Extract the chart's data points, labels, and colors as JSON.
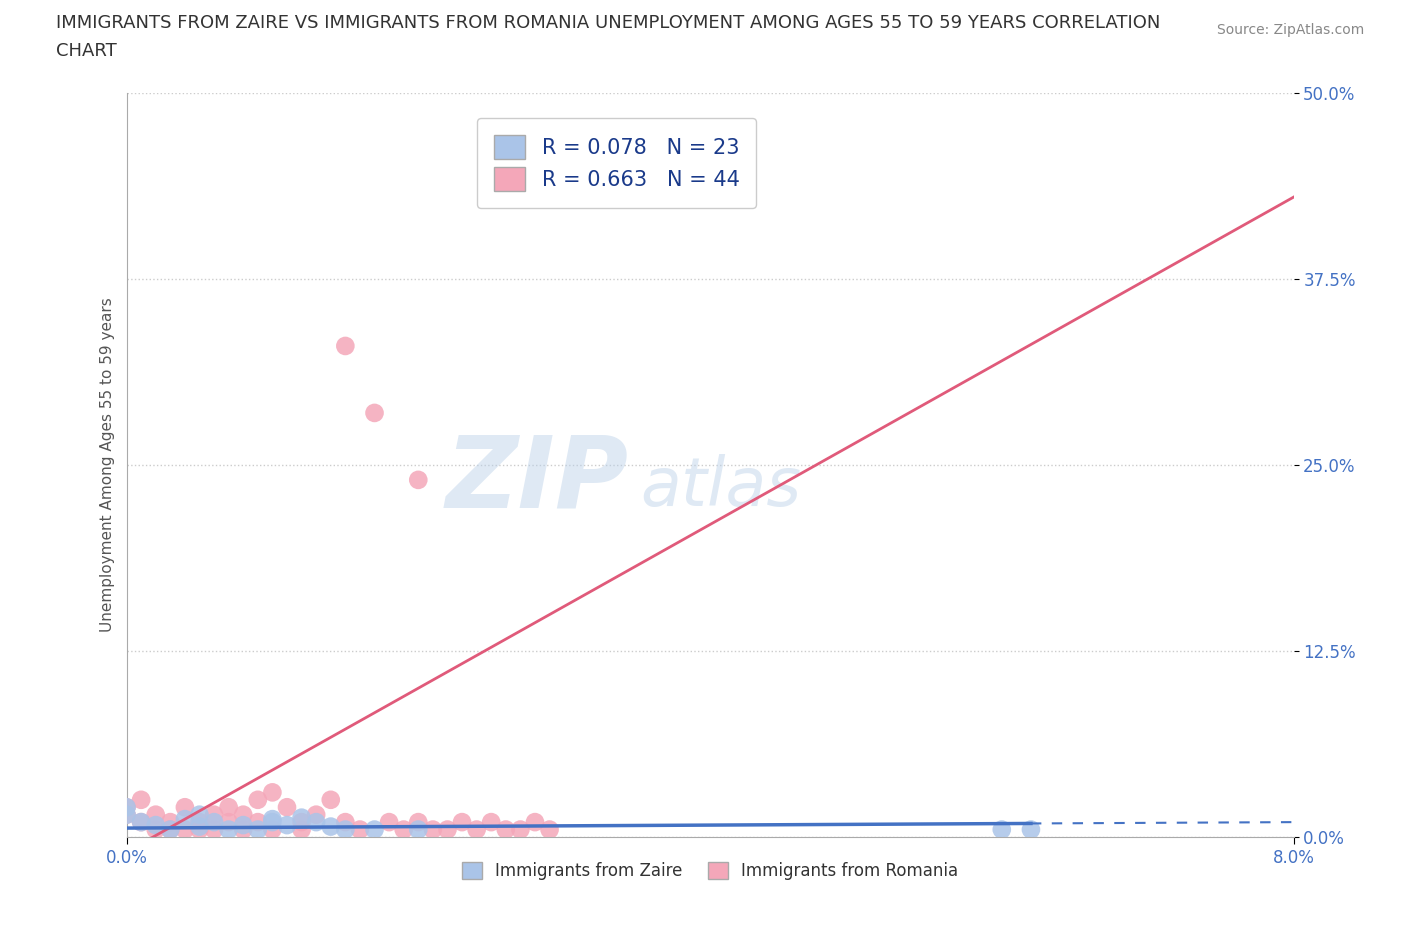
{
  "title_line1": "IMMIGRANTS FROM ZAIRE VS IMMIGRANTS FROM ROMANIA UNEMPLOYMENT AMONG AGES 55 TO 59 YEARS CORRELATION",
  "title_line2": "CHART",
  "source": "Source: ZipAtlas.com",
  "ylabel": "Unemployment Among Ages 55 to 59 years",
  "xlim": [
    0.0,
    0.08
  ],
  "ylim": [
    0.0,
    0.5
  ],
  "x_ticks": [
    0.0,
    0.08
  ],
  "x_tick_labels": [
    "0.0%",
    "8.0%"
  ],
  "y_ticks": [
    0.0,
    0.125,
    0.25,
    0.375,
    0.5
  ],
  "y_tick_labels": [
    "0.0%",
    "12.5%",
    "25.0%",
    "37.5%",
    "50.0%"
  ],
  "legend_zaire": "Immigrants from Zaire",
  "legend_romania": "Immigrants from Romania",
  "R_zaire": 0.078,
  "N_zaire": 23,
  "R_romania": 0.663,
  "N_romania": 44,
  "color_zaire": "#aac4e8",
  "color_romania": "#f4a7b9",
  "line_color_zaire": "#4472c4",
  "line_color_romania": "#e05a7a",
  "watermark": "ZIPatlas",
  "background_color": "#ffffff",
  "grid_color": "#cccccc",
  "zaire_x": [
    0.0,
    0.0,
    0.001,
    0.002,
    0.003,
    0.004,
    0.005,
    0.005,
    0.006,
    0.007,
    0.008,
    0.009,
    0.01,
    0.01,
    0.011,
    0.012,
    0.013,
    0.014,
    0.015,
    0.017,
    0.02,
    0.06,
    0.062
  ],
  "zaire_y": [
    0.02,
    0.015,
    0.01,
    0.008,
    0.005,
    0.012,
    0.007,
    0.015,
    0.01,
    0.005,
    0.008,
    0.005,
    0.012,
    0.01,
    0.008,
    0.013,
    0.01,
    0.007,
    0.005,
    0.005,
    0.005,
    0.005,
    0.005
  ],
  "romania_x": [
    0.0,
    0.0,
    0.001,
    0.001,
    0.002,
    0.002,
    0.003,
    0.003,
    0.004,
    0.004,
    0.005,
    0.005,
    0.006,
    0.006,
    0.007,
    0.007,
    0.008,
    0.008,
    0.009,
    0.009,
    0.01,
    0.01,
    0.011,
    0.012,
    0.012,
    0.013,
    0.014,
    0.015,
    0.015,
    0.016,
    0.017,
    0.018,
    0.019,
    0.02,
    0.02,
    0.021,
    0.022,
    0.023,
    0.024,
    0.025,
    0.026,
    0.027,
    0.028,
    0.029
  ],
  "romania_y": [
    0.015,
    0.02,
    0.01,
    0.025,
    0.005,
    0.015,
    0.005,
    0.01,
    0.005,
    0.02,
    0.01,
    0.005,
    0.015,
    0.005,
    0.01,
    0.02,
    0.005,
    0.015,
    0.025,
    0.01,
    0.005,
    0.03,
    0.02,
    0.01,
    0.005,
    0.015,
    0.025,
    0.01,
    0.33,
    0.005,
    0.285,
    0.01,
    0.005,
    0.01,
    0.24,
    0.005,
    0.005,
    0.01,
    0.005,
    0.01,
    0.005,
    0.005,
    0.01,
    0.005
  ]
}
